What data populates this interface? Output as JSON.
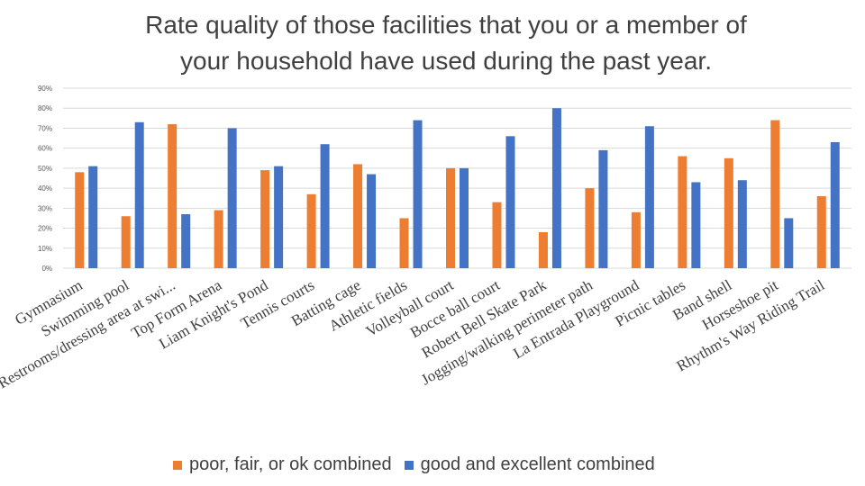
{
  "chart_data": {
    "type": "bar",
    "title_line1": "Rate quality of those facilities that you or a member of",
    "title_line2": "your household have used during the past year.",
    "xlabel": "",
    "ylabel": "",
    "ylim": [
      0,
      90
    ],
    "yticks": [
      "0%",
      "10%",
      "20%",
      "30%",
      "40%",
      "50%",
      "60%",
      "70%",
      "80%",
      "90%"
    ],
    "categories": [
      "Gymnasium",
      "Swimming pool",
      "Restrooms/dressing area at swi...",
      "Top Form Arena",
      "Liam Knight's Pond",
      "Tennis courts",
      "Batting cage",
      "Athletic fields",
      "Volleyball court",
      "Bocce ball court",
      "Robert Bell Skate Park",
      "Jogging/walking perimeter path",
      "La Entrada Playground",
      "Picnic tables",
      "Band shell",
      "Horseshoe pit",
      "Rhythm's Way Riding Trail"
    ],
    "series": [
      {
        "name": "poor, fair, or ok combined",
        "color": "#ED7D31",
        "values": [
          48,
          26,
          72,
          29,
          49,
          37,
          52,
          25,
          50,
          33,
          18,
          40,
          28,
          56,
          55,
          74,
          36
        ]
      },
      {
        "name": "good and excellent combined",
        "color": "#4472C4",
        "values": [
          51,
          73,
          27,
          70,
          51,
          62,
          47,
          74,
          50,
          66,
          80,
          59,
          71,
          43,
          44,
          25,
          63
        ]
      }
    ],
    "grid": true,
    "legend_position": "bottom"
  }
}
